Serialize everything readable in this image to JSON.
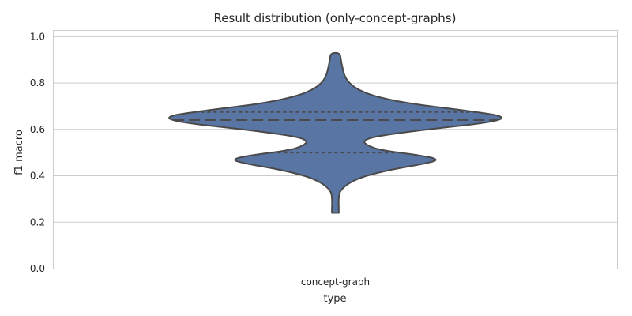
{
  "chart_data": {
    "type": "violin",
    "title": "Result distribution (only-concept-graphs)",
    "xlabel": "type",
    "ylabel": "f1 macro",
    "categories": [
      "concept-graph"
    ],
    "ylim": [
      0.0,
      1.0
    ],
    "yticks": [
      0.0,
      0.2,
      0.4,
      0.6,
      0.8,
      1.0
    ],
    "grid": true,
    "fill_color": "#5875a4",
    "edge_color": "#4a4a4a",
    "quartiles": {
      "q1": 0.5,
      "median": 0.64,
      "q3": 0.675
    },
    "density_profile": [
      {
        "y": 0.24,
        "w": 0.015
      },
      {
        "y": 0.26,
        "w": 0.015
      },
      {
        "y": 0.29,
        "w": 0.014
      },
      {
        "y": 0.32,
        "w": 0.016
      },
      {
        "y": 0.34,
        "w": 0.025
      },
      {
        "y": 0.37,
        "w": 0.06
      },
      {
        "y": 0.4,
        "w": 0.13
      },
      {
        "y": 0.43,
        "w": 0.26
      },
      {
        "y": 0.45,
        "w": 0.38
      },
      {
        "y": 0.47,
        "w": 0.46
      },
      {
        "y": 0.49,
        "w": 0.36
      },
      {
        "y": 0.51,
        "w": 0.2
      },
      {
        "y": 0.53,
        "w": 0.14
      },
      {
        "y": 0.55,
        "w": 0.12
      },
      {
        "y": 0.57,
        "w": 0.17
      },
      {
        "y": 0.6,
        "w": 0.4
      },
      {
        "y": 0.63,
        "w": 0.68
      },
      {
        "y": 0.655,
        "w": 0.75
      },
      {
        "y": 0.68,
        "w": 0.58
      },
      {
        "y": 0.71,
        "w": 0.33
      },
      {
        "y": 0.74,
        "w": 0.18
      },
      {
        "y": 0.77,
        "w": 0.1
      },
      {
        "y": 0.8,
        "w": 0.06
      },
      {
        "y": 0.83,
        "w": 0.04
      },
      {
        "y": 0.87,
        "w": 0.03
      },
      {
        "y": 0.9,
        "w": 0.024
      },
      {
        "y": 0.93,
        "w": 0.02
      }
    ]
  }
}
